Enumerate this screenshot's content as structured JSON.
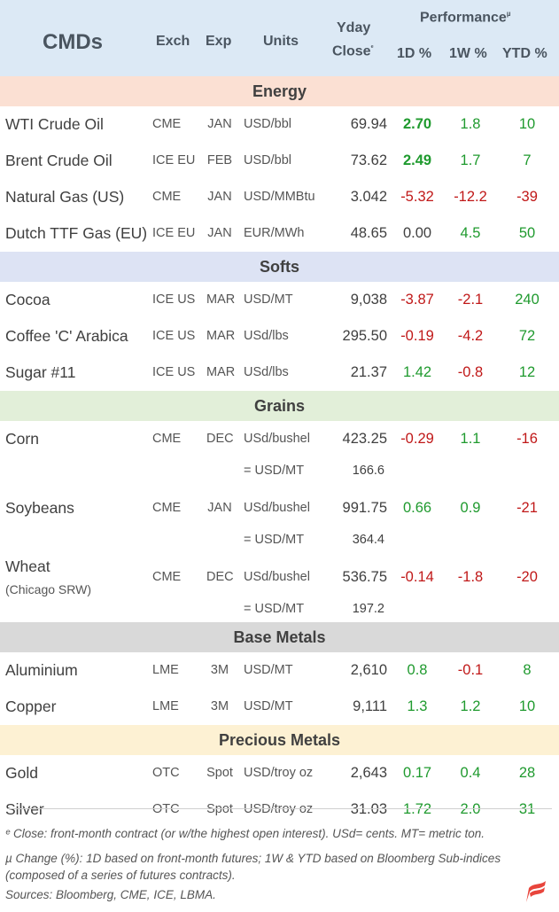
{
  "header": {
    "title": "CMDs",
    "exch": "Exch",
    "exp": "Exp",
    "units": "Units",
    "yday": "Yday",
    "close": "Close",
    "close_mark": "ᵉ",
    "performance": "Performance",
    "perf_mark": "µ",
    "d1": "1D %",
    "w1": "1W %",
    "ytd": "YTD %"
  },
  "colors": {
    "positive": "#1f9a2e",
    "negative": "#c01818",
    "neutral": "#404040"
  },
  "sections": [
    {
      "name": "Energy",
      "bg": "#fbe0d3",
      "rows": [
        {
          "name": "WTI Crude Oil",
          "exch": "CME",
          "exp": "JAN",
          "units": "USD/bbl",
          "close": "69.94",
          "d1": "2.70",
          "w1": "1.8",
          "ytd": "10",
          "d1_bold": true
        },
        {
          "name": "Brent Crude Oil",
          "exch": "ICE EU",
          "exp": "FEB",
          "units": "USD/bbl",
          "close": "73.62",
          "d1": "2.49",
          "w1": "1.7",
          "ytd": "7",
          "d1_bold": true
        },
        {
          "name": "Natural Gas (US)",
          "exch": "CME",
          "exp": "JAN",
          "units": "USD/MMBtu",
          "close": "3.042",
          "d1": "-5.32",
          "w1": "-12.2",
          "ytd": "-39"
        },
        {
          "name": "Dutch TTF Gas (EU)",
          "exch": "ICE EU",
          "exp": "JAN",
          "units": "EUR/MWh",
          "close": "48.65",
          "d1": "0.00",
          "w1": "4.5",
          "ytd": "50"
        }
      ]
    },
    {
      "name": "Softs",
      "bg": "#dde3f4",
      "rows": [
        {
          "name": "Cocoa",
          "exch": "ICE US",
          "exp": "MAR",
          "units": "USD/MT",
          "close": "9,038",
          "d1": "-3.87",
          "w1": "-2.1",
          "ytd": "240"
        },
        {
          "name": "Coffee 'C' Arabica",
          "exch": "ICE US",
          "exp": "MAR",
          "units": "USd/lbs",
          "close": "295.50",
          "d1": "-0.19",
          "w1": "-4.2",
          "ytd": "72"
        },
        {
          "name": "Sugar #11",
          "exch": "ICE US",
          "exp": "MAR",
          "units": "USd/lbs",
          "close": "21.37",
          "d1": "1.42",
          "w1": "-0.8",
          "ytd": "12"
        }
      ]
    },
    {
      "name": "Grains",
      "bg": "#e2efd9",
      "rows": [
        {
          "name": "Corn",
          "exch": "CME",
          "exp": "DEC",
          "units": "USd/bushel",
          "close": "423.25",
          "d1": "-0.29",
          "w1": "1.1",
          "ytd": "-16",
          "sub_units": "= USD/MT",
          "sub_close": "166.6"
        },
        {
          "name": "Soybeans",
          "exch": "CME",
          "exp": "JAN",
          "units": "USd/bushel",
          "close": "991.75",
          "d1": "0.66",
          "w1": "0.9",
          "ytd": "-21",
          "sub_units": "= USD/MT",
          "sub_close": "364.4"
        },
        {
          "name": "Wheat",
          "name_sub": "(Chicago SRW)",
          "exch": "CME",
          "exp": "DEC",
          "units": "USd/bushel",
          "close": "536.75",
          "d1": "-0.14",
          "w1": "-1.8",
          "ytd": "-20",
          "sub_units": "= USD/MT",
          "sub_close": "197.2"
        }
      ]
    },
    {
      "name": "Base Metals",
      "bg": "#d9d9d9",
      "rows": [
        {
          "name": "Aluminium",
          "exch": "LME",
          "exp": "3M",
          "units": "USD/MT",
          "close": "2,610",
          "d1": "0.8",
          "w1": "-0.1",
          "ytd": "8"
        },
        {
          "name": "Copper",
          "exch": "LME",
          "exp": "3M",
          "units": "USD/MT",
          "close": "9,111",
          "d1": "1.3",
          "w1": "1.2",
          "ytd": "10"
        }
      ]
    },
    {
      "name": "Precious Metals",
      "bg": "#fdf1d3",
      "rows": [
        {
          "name": "Gold",
          "exch": "OTC",
          "exp": "Spot",
          "units": "USD/troy oz",
          "close": "2,643",
          "d1": "0.17",
          "w1": "0.4",
          "ytd": "28"
        },
        {
          "name": "Silver",
          "exch": "OTC",
          "exp": "Spot",
          "units": "USD/troy oz",
          "close": "31.03",
          "d1": "1.72",
          "w1": "2.0",
          "ytd": "31"
        }
      ]
    }
  ],
  "footnotes": {
    "close_note": "ᵉ Close: front-month contract (or w/the highest open interest). USd= cents. MT= metric ton.",
    "change_note_1": "µ Change (%): 1D based on front-month futures; 1W & YTD based on Bloomberg Sub-indices",
    "change_note_2": "(composed of a series of futures contracts).",
    "sources": "Sources: Bloomberg, CME, ICE, LBMA."
  },
  "logo_icon": "brand-flag-logo-icon"
}
